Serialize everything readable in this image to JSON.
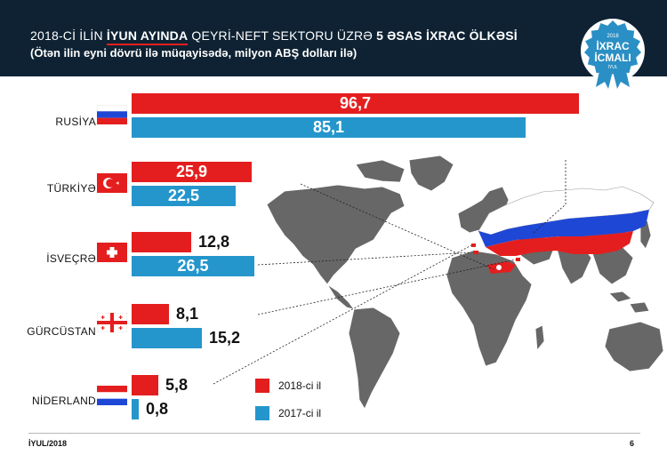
{
  "header": {
    "title_pre": "2018-Cİ İLİN ",
    "title_highlight": "İYUN AYINDA",
    "title_mid": " QEYRİ-NEFT SEKTORU ÜZRƏ ",
    "title_bold": "5 ƏSAS İXRAC ÖLKƏSİ",
    "subtitle": "(Ötən ilin eyni dövrü ilə müqayisədə, milyon ABŞ dolları ilə)"
  },
  "badge": {
    "year": "2018",
    "line1": "İXRAC",
    "line2": "İCMALI",
    "month": "İYUL"
  },
  "colors": {
    "header_bg": "#0e2233",
    "y2018": "#e41e1e",
    "y2017": "#2596cc",
    "map_gray": "#666666",
    "badge": "#2a8fc4"
  },
  "chart_data": {
    "type": "bar",
    "orientation": "horizontal",
    "categories": [
      "RUSİYA",
      "TÜRKİYƏ",
      "İSVEÇRƏ",
      "GÜRCÜSTAN",
      "NİDERLAND"
    ],
    "series": [
      {
        "name": "2018-ci il",
        "values": [
          96.7,
          25.9,
          12.8,
          8.1,
          5.8
        ],
        "labels": [
          "96,7",
          "25,9",
          "12,8",
          "8,1",
          "5,8"
        ]
      },
      {
        "name": "2017-ci il",
        "values": [
          85.1,
          22.5,
          26.5,
          15.2,
          0.8
        ],
        "labels": [
          "85,1",
          "22,5",
          "26,5",
          "15,2",
          "0,8"
        ]
      }
    ],
    "legend_position": "bottom-center",
    "grid": false
  },
  "legend": {
    "y2018": "2018-ci il",
    "y2017": "2017-ci il"
  },
  "footer": {
    "left": "İYUL/2018",
    "page": "6"
  },
  "icons": {
    "flags": [
      "russia-flag-icon",
      "turkey-flag-icon",
      "switzerland-flag-icon",
      "georgia-flag-icon",
      "netherlands-flag-icon"
    ],
    "map": "world-map-icon",
    "badge": "ribbon-badge-icon"
  }
}
